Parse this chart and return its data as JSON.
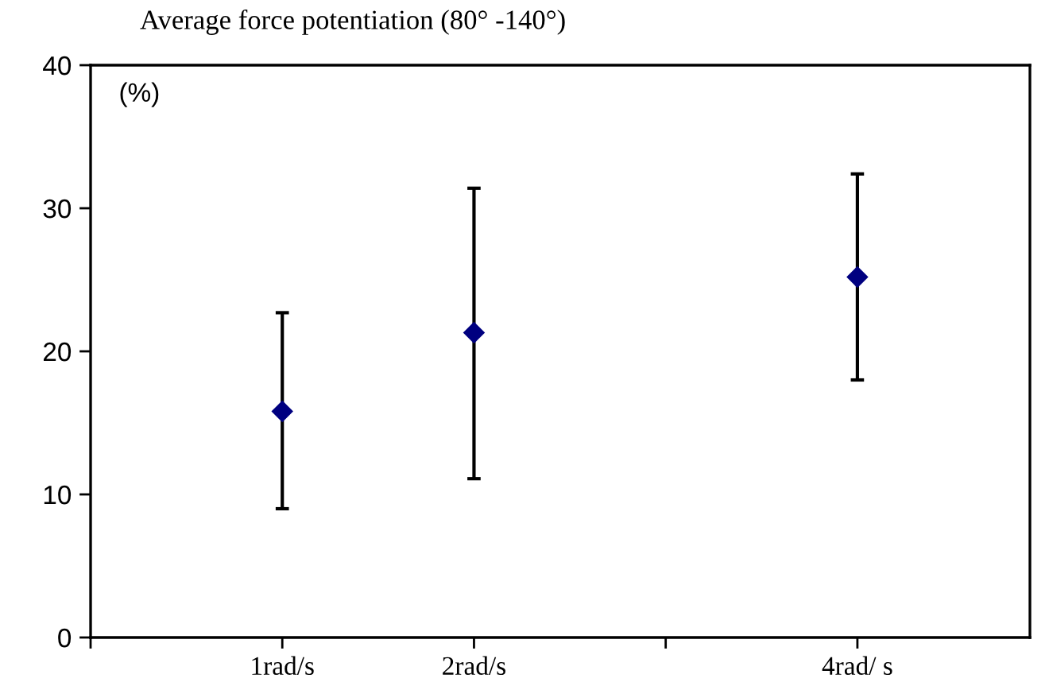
{
  "chart_data": {
    "type": "scatter",
    "title": "Average force potentiation (80° -140°)",
    "ylabel": "(%)",
    "x": [
      1,
      2,
      4
    ],
    "values": [
      15.8,
      21.3,
      25.2
    ],
    "errors": [
      [
        9.0,
        22.7
      ],
      [
        11.1,
        31.4
      ],
      [
        18.0,
        32.4
      ]
    ],
    "color": "#000080",
    "marker": "diamond",
    "xlim": [
      0,
      4.9
    ],
    "xticks": [
      {
        "value": 0,
        "label": null
      },
      {
        "value": 1,
        "label": "1rad/s"
      },
      {
        "value": 2,
        "label": "2rad/s"
      },
      {
        "value": 3,
        "label": null
      },
      {
        "value": 4,
        "label": "4rad/ s"
      }
    ],
    "ylim": [
      0,
      40
    ],
    "yticks": [
      0,
      10,
      20,
      30,
      40
    ],
    "grid": false,
    "legend": false
  }
}
